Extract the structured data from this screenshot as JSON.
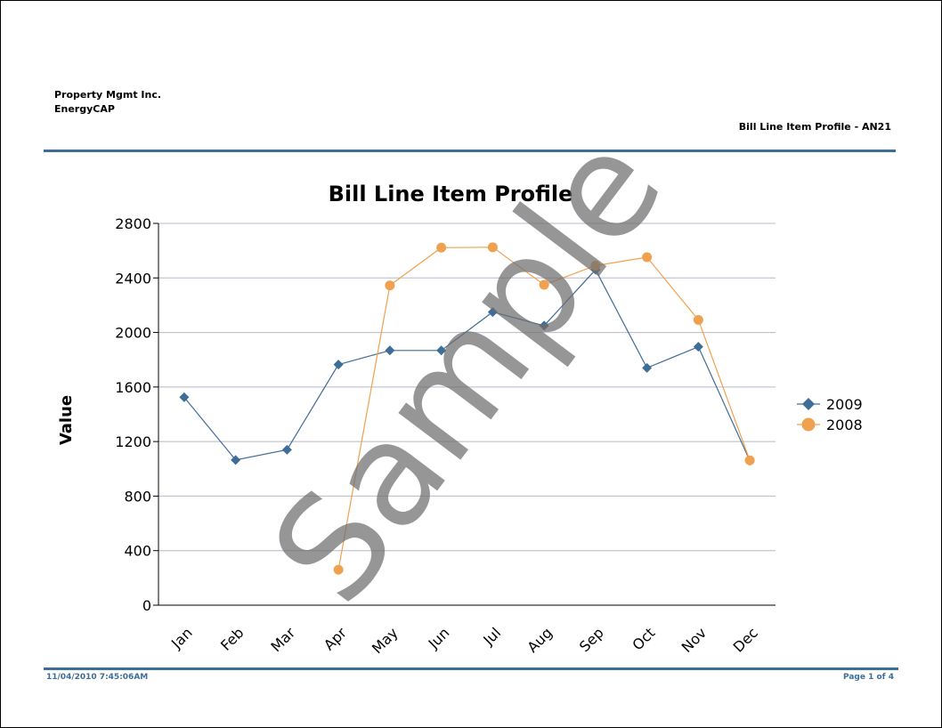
{
  "header": {
    "company_line1": "Property Mgmt Inc.",
    "company_line2": "EnergyCAP",
    "report_id": "Bill Line Item Profile - AN21"
  },
  "footer": {
    "timestamp": "11/04/2010  7:45:06AM",
    "page": "Page 1 of 4"
  },
  "watermark": "Sample",
  "colors": {
    "series_2009": "#3e6d98",
    "series_2008": "#f0a14f",
    "rule": "#3e6d98",
    "grid": "#b8b8c8"
  },
  "chart_data": {
    "type": "line",
    "title": "Bill Line Item Profile",
    "xlabel": "",
    "ylabel": "Value",
    "ylim": [
      0,
      2800
    ],
    "yticks": [
      0,
      400,
      800,
      1200,
      1600,
      2000,
      2400,
      2800
    ],
    "grid": true,
    "legend_position": "right",
    "categories": [
      "Jan",
      "Feb",
      "Mar",
      "Apr",
      "May",
      "Jun",
      "Jul",
      "Aug",
      "Sep",
      "Oct",
      "Nov",
      "Dec"
    ],
    "series": [
      {
        "name": "2009",
        "marker": "diamond",
        "values": [
          1525,
          1065,
          1140,
          1765,
          1868,
          1868,
          2150,
          2050,
          2460,
          1740,
          1895,
          1060
        ]
      },
      {
        "name": "2008",
        "marker": "circle",
        "values": [
          null,
          null,
          null,
          260,
          2345,
          2622,
          2625,
          2350,
          2490,
          2552,
          2092,
          1062
        ]
      }
    ]
  }
}
